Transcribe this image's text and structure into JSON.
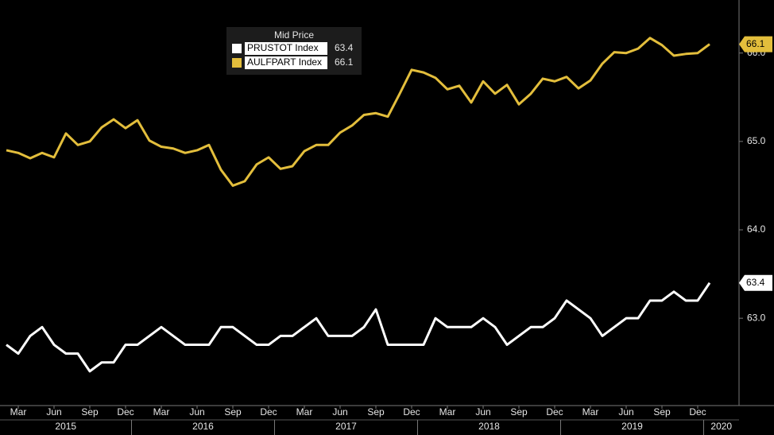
{
  "chart_data": {
    "type": "line",
    "legend_title": "Mid Price",
    "x": [
      "2015-02",
      "2015-03",
      "2015-04",
      "2015-05",
      "2015-06",
      "2015-07",
      "2015-08",
      "2015-09",
      "2015-10",
      "2015-11",
      "2015-12",
      "2016-01",
      "2016-02",
      "2016-03",
      "2016-04",
      "2016-05",
      "2016-06",
      "2016-07",
      "2016-08",
      "2016-09",
      "2016-10",
      "2016-11",
      "2016-12",
      "2017-01",
      "2017-02",
      "2017-03",
      "2017-04",
      "2017-05",
      "2017-06",
      "2017-07",
      "2017-08",
      "2017-09",
      "2017-10",
      "2017-11",
      "2017-12",
      "2018-01",
      "2018-02",
      "2018-03",
      "2018-04",
      "2018-05",
      "2018-06",
      "2018-07",
      "2018-08",
      "2018-09",
      "2018-10",
      "2018-11",
      "2018-12",
      "2019-01",
      "2019-02",
      "2019-03",
      "2019-04",
      "2019-05",
      "2019-06",
      "2019-07",
      "2019-08",
      "2019-09",
      "2019-10",
      "2019-11",
      "2019-12",
      "2020-01"
    ],
    "series": [
      {
        "name": "PRUSTOT Index",
        "color": "#ffffff",
        "last_label": "63.4",
        "values": [
          62.7,
          62.6,
          62.8,
          62.9,
          62.7,
          62.6,
          62.6,
          62.4,
          62.5,
          62.5,
          62.7,
          62.7,
          62.8,
          62.9,
          62.8,
          62.7,
          62.7,
          62.7,
          62.9,
          62.9,
          62.8,
          62.7,
          62.7,
          62.8,
          62.8,
          62.9,
          63.0,
          62.8,
          62.8,
          62.8,
          62.9,
          63.1,
          62.7,
          62.7,
          62.7,
          62.7,
          63.0,
          62.9,
          62.9,
          62.9,
          63.0,
          62.9,
          62.7,
          62.8,
          62.9,
          62.9,
          63.0,
          63.2,
          63.1,
          63.0,
          62.8,
          62.9,
          63.0,
          63.0,
          63.2,
          63.2,
          63.3,
          63.2,
          63.2,
          63.4
        ]
      },
      {
        "name": "AULFPART Index",
        "color": "#e3be3c",
        "last_label": "66.1",
        "values": [
          64.9,
          64.87,
          64.81,
          64.87,
          64.82,
          65.09,
          64.96,
          65.0,
          65.16,
          65.25,
          65.15,
          65.24,
          65.01,
          64.94,
          64.92,
          64.87,
          64.9,
          64.96,
          64.68,
          64.5,
          64.55,
          64.74,
          64.82,
          64.69,
          64.72,
          64.89,
          64.96,
          64.96,
          65.1,
          65.18,
          65.3,
          65.32,
          65.28,
          65.54,
          65.81,
          65.78,
          65.72,
          65.59,
          65.63,
          65.44,
          65.68,
          65.54,
          65.64,
          65.42,
          65.54,
          65.71,
          65.68,
          65.73,
          65.6,
          65.69,
          65.88,
          66.01,
          66.0,
          66.05,
          66.17,
          66.09,
          65.97,
          65.99,
          66.0,
          66.1
        ]
      }
    ],
    "ylim": [
      62.03,
      66.6
    ],
    "yticks": [
      {
        "value": 63,
        "label": "63.0"
      },
      {
        "value": 64,
        "label": "64.0"
      },
      {
        "value": 65,
        "label": "65.0"
      },
      {
        "value": 66,
        "label": "66.0"
      }
    ],
    "xticks": [
      {
        "value": "2015-03",
        "label": "Mar"
      },
      {
        "value": "2015-06",
        "label": "Jun"
      },
      {
        "value": "2015-09",
        "label": "Sep"
      },
      {
        "value": "2015-12",
        "label": "Dec"
      },
      {
        "value": "2016-03",
        "label": "Mar"
      },
      {
        "value": "2016-06",
        "label": "Jun"
      },
      {
        "value": "2016-09",
        "label": "Sep"
      },
      {
        "value": "2016-12",
        "label": "Dec"
      },
      {
        "value": "2017-03",
        "label": "Mar"
      },
      {
        "value": "2017-06",
        "label": "Jun"
      },
      {
        "value": "2017-09",
        "label": "Sep"
      },
      {
        "value": "2017-12",
        "label": "Dec"
      },
      {
        "value": "2018-03",
        "label": "Mar"
      },
      {
        "value": "2018-06",
        "label": "Jun"
      },
      {
        "value": "2018-09",
        "label": "Sep"
      },
      {
        "value": "2018-12",
        "label": "Dec"
      },
      {
        "value": "2019-03",
        "label": "Mar"
      },
      {
        "value": "2019-06",
        "label": "Jun"
      },
      {
        "value": "2019-09",
        "label": "Sep"
      },
      {
        "value": "2019-12",
        "label": "Dec"
      }
    ],
    "years": [
      "2015",
      "2016",
      "2017",
      "2018",
      "2019",
      "2020"
    ]
  }
}
